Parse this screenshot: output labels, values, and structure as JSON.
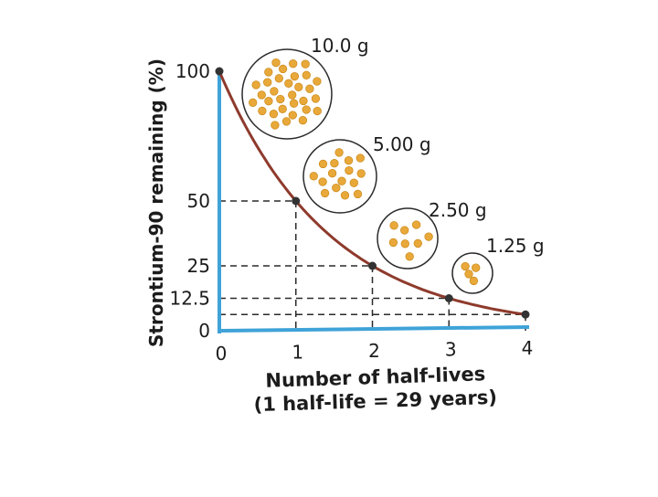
{
  "chart_data": {
    "type": "line",
    "title": "",
    "xlabel": "Number of half-lives",
    "xlabel_note": "(1 half-life = 29 years)",
    "ylabel": "Strontium-90 remaining (%)",
    "x": [
      0,
      1,
      2,
      3,
      4
    ],
    "y": [
      100,
      50,
      25,
      12.5,
      6.25
    ],
    "xlim": [
      0,
      4
    ],
    "ylim": [
      0,
      100
    ],
    "x_ticks": [
      "0",
      "1",
      "2",
      "3",
      "4"
    ],
    "y_ticks": [
      {
        "value": 0,
        "label": "0"
      },
      {
        "value": 12.5,
        "label": "12.5"
      },
      {
        "value": 25,
        "label": "25"
      },
      {
        "value": 50,
        "label": "50"
      },
      {
        "value": 100,
        "label": "100"
      }
    ],
    "annotations": [
      {
        "x": 0,
        "label": "10.0 g",
        "dots": 32
      },
      {
        "x": 1,
        "label": "5.00 g",
        "dots": 16
      },
      {
        "x": 2,
        "label": "2.50 g",
        "dots": 8
      },
      {
        "x": 3,
        "label": "1.25 g",
        "dots": 4
      }
    ],
    "grid": "dashed guide lines from data points to axes",
    "colors": {
      "curve": "#8e3a2c",
      "axes": "#3fa3d8",
      "point": "#333333",
      "dot": "#e9a93a",
      "dot_edge": "#c98716",
      "guide": "#2a2a2a"
    }
  }
}
